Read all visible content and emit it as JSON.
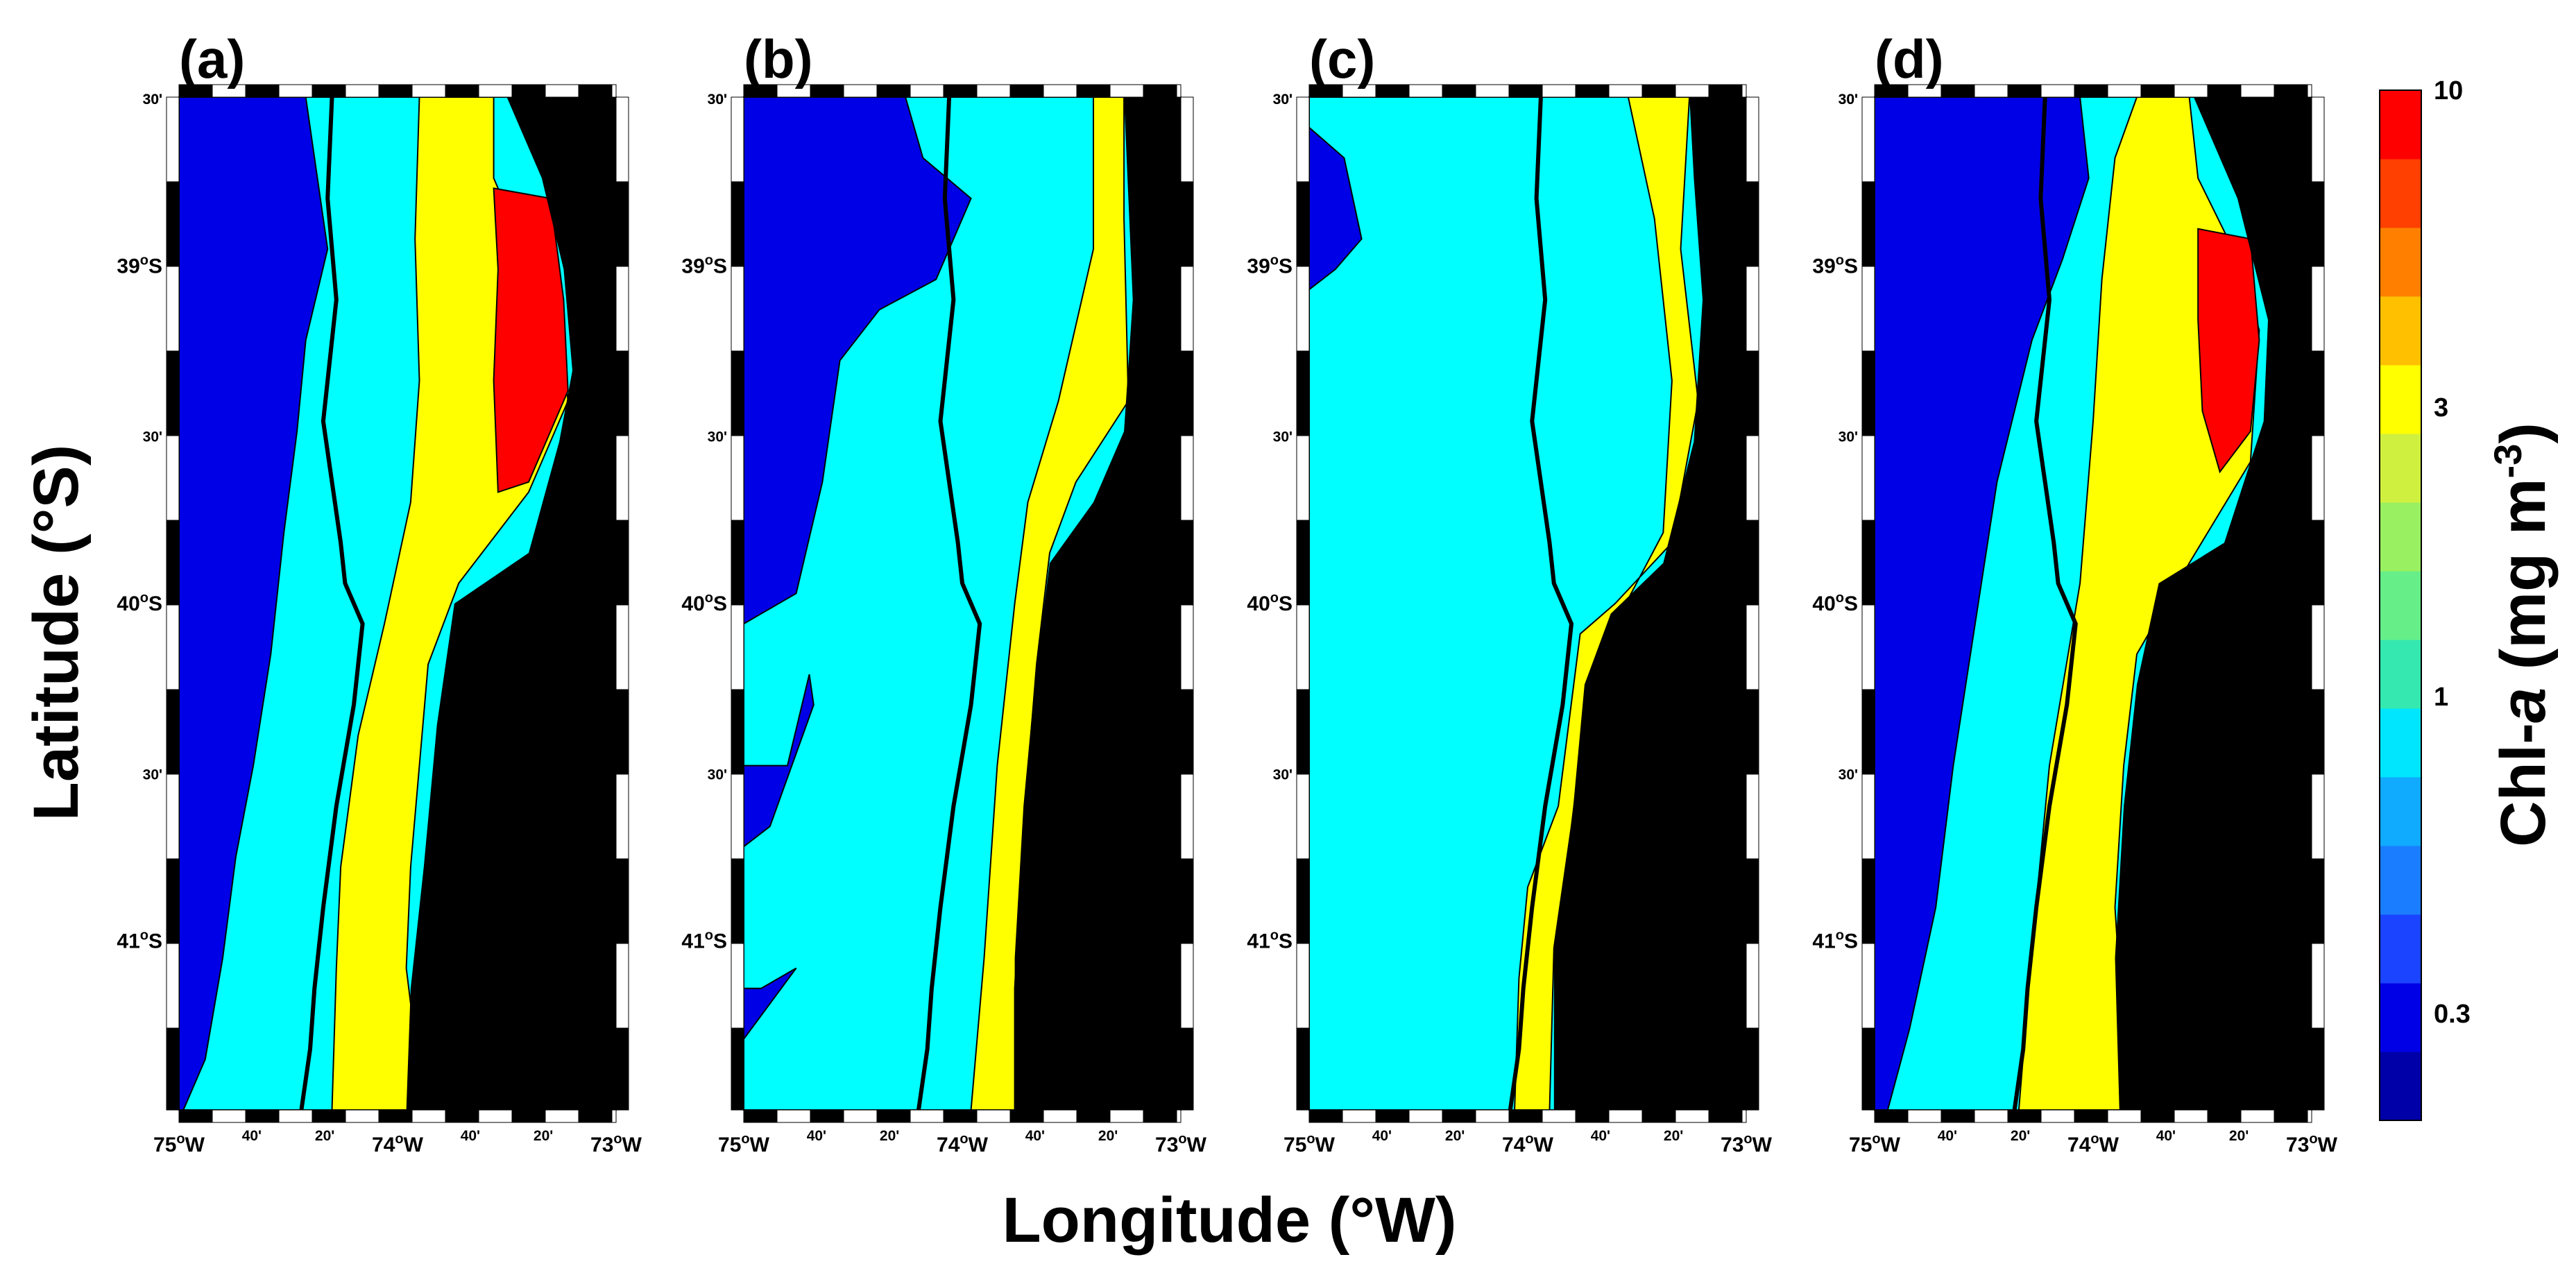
{
  "figure": {
    "x_axis_title": "Longitude (°W)",
    "y_axis_title_parts": [
      "Chl-",
      "a",
      " (mg m",
      "-3",
      ")"
    ],
    "y_axis_title_left": "Latitude (°S)"
  },
  "panels": [
    {
      "label": "(a)"
    },
    {
      "label": "(b)"
    },
    {
      "label": "(c)"
    },
    {
      "label": "(d)"
    }
  ],
  "axes": {
    "x_ticks": [
      {
        "lon": -75.0,
        "deg": "75",
        "suffix": "W",
        "kind": "deg"
      },
      {
        "lon": -74.667,
        "text": "40'",
        "kind": "min"
      },
      {
        "lon": -74.333,
        "text": "20'",
        "kind": "min"
      },
      {
        "lon": -74.0,
        "deg": "74",
        "suffix": "W",
        "kind": "deg"
      },
      {
        "lon": -73.667,
        "text": "40'",
        "kind": "min"
      },
      {
        "lon": -73.333,
        "text": "20'",
        "kind": "min"
      },
      {
        "lon": -73.0,
        "deg": "73",
        "suffix": "W",
        "kind": "deg"
      }
    ],
    "y_ticks": [
      {
        "lat": -38.5,
        "text": "30'",
        "kind": "min"
      },
      {
        "lat": -39.0,
        "deg": "39",
        "suffix": "S",
        "kind": "deg"
      },
      {
        "lat": -39.5,
        "text": "30'",
        "kind": "min"
      },
      {
        "lat": -40.0,
        "deg": "40",
        "suffix": "S",
        "kind": "deg"
      },
      {
        "lat": -40.5,
        "text": "30'",
        "kind": "min"
      },
      {
        "lat": -41.0,
        "deg": "41",
        "suffix": "S",
        "kind": "deg"
      }
    ],
    "lon_range": [
      -75.0,
      -73.0
    ],
    "lat_range": [
      -41.5,
      -38.5
    ],
    "degree_symbol": "o"
  },
  "colorbar": {
    "scale": "log",
    "range": [
      0.2,
      10
    ],
    "tick_labels": [
      {
        "value": 10,
        "text": "10"
      },
      {
        "value": 3,
        "text": "3"
      },
      {
        "value": 1,
        "text": "1"
      },
      {
        "value": 0.3,
        "text": "0.3"
      }
    ],
    "colors": [
      "#0000a8",
      "#0000e6",
      "#1a44ff",
      "#1a7dff",
      "#10aaff",
      "#00e6ff",
      "#35e8b0",
      "#66ee88",
      "#99f060",
      "#d0f040",
      "#ffff00",
      "#ffc000",
      "#ff8000",
      "#ff4000",
      "#ff0000"
    ]
  },
  "map_colors": {
    "low": "#0000e6",
    "mid": "#00ffff",
    "high": "#ffff00",
    "very_high": "#ff0000",
    "land": "#000000"
  }
}
